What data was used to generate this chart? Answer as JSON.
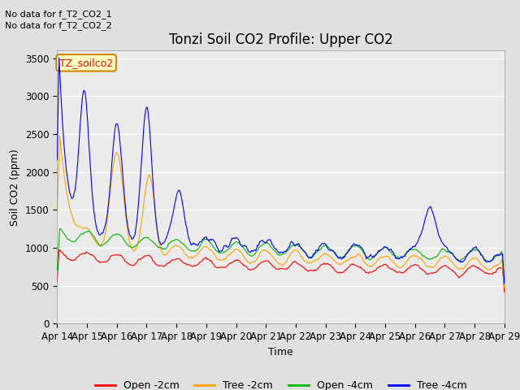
{
  "title": "Tonzi Soil CO2 Profile: Upper CO2",
  "ylabel": "Soil CO2 (ppm)",
  "xlabel": "Time",
  "annotations": [
    "No data for f_T2_CO2_1",
    "No data for f_T2_CO2_2"
  ],
  "legend_label": "TZ_soilco2",
  "legend_box_facecolor": "#FFFFC0",
  "legend_box_edgecolor": "#CC8800",
  "ylim": [
    0,
    3600
  ],
  "yticks": [
    0,
    500,
    1000,
    1500,
    2000,
    2500,
    3000,
    3500
  ],
  "date_labels": [
    "Apr 14",
    "Apr 15",
    "Apr 16",
    "Apr 17",
    "Apr 18",
    "Apr 19",
    "Apr 20",
    "Apr 21",
    "Apr 22",
    "Apr 23",
    "Apr 24",
    "Apr 25",
    "Apr 26",
    "Apr 27",
    "Apr 28",
    "Apr 29"
  ],
  "series_colors": {
    "open_2cm": "#FF0000",
    "tree_2cm": "#FFA500",
    "open_4cm": "#00BB00",
    "tree_4cm": "#0000FF"
  },
  "series_labels": [
    "Open -2cm",
    "Tree -2cm",
    "Open -4cm",
    "Tree -4cm"
  ],
  "bg_color": "#E0E0E0",
  "plot_bg_color": "#EBEBEB",
  "title_fontsize": 12,
  "axis_fontsize": 9,
  "tick_fontsize": 8.5,
  "annotation_fontsize": 8,
  "legend_fontsize": 9
}
